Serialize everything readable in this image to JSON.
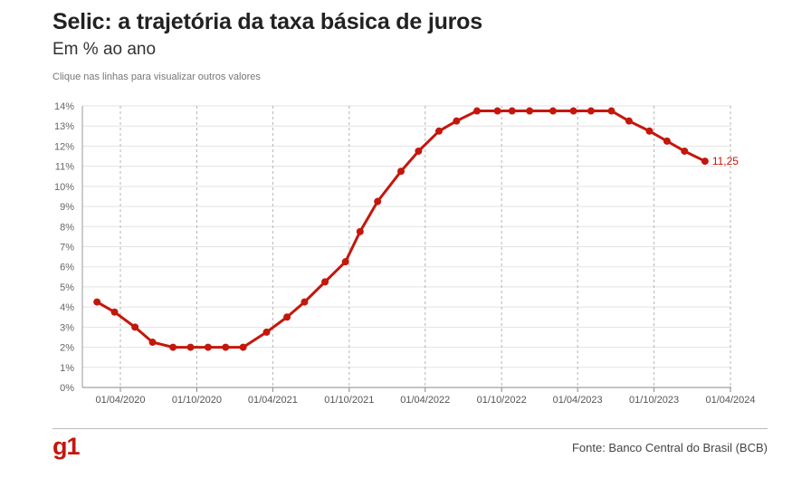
{
  "header": {
    "title": "Selic: a trajetória da taxa básica de juros",
    "subtitle": "Em % ao ano",
    "hint": "Clique nas linhas para visualizar outros valores"
  },
  "footer": {
    "logo": "g1",
    "source": "Fonte: Banco Central do Brasil (BCB)"
  },
  "colors": {
    "line": "#c4170c",
    "grid": "#e3e3e3",
    "vgrid": "#b5b5b5"
  },
  "chart_data": {
    "type": "line",
    "title": "Selic: a trajetória da taxa básica de juros",
    "subtitle": "Em % ao ano",
    "ylim": [
      0,
      14
    ],
    "y_ticks": [
      {
        "value": 0,
        "label": "0%"
      },
      {
        "value": 1,
        "label": "1%"
      },
      {
        "value": 2,
        "label": "2%"
      },
      {
        "value": 3,
        "label": "3%"
      },
      {
        "value": 4,
        "label": "4%"
      },
      {
        "value": 5,
        "label": "5%"
      },
      {
        "value": 6,
        "label": "6%"
      },
      {
        "value": 7,
        "label": "7%"
      },
      {
        "value": 8,
        "label": "8%"
      },
      {
        "value": 9,
        "label": "9%"
      },
      {
        "value": 10,
        "label": "10%"
      },
      {
        "value": 11,
        "label": "11%"
      },
      {
        "value": 12,
        "label": "12%"
      },
      {
        "value": 13,
        "label": "13%"
      },
      {
        "value": 14,
        "label": "14%"
      }
    ],
    "x_ticks": [
      "01/04/2020",
      "01/10/2020",
      "01/04/2021",
      "01/10/2021",
      "01/04/2022",
      "01/10/2022",
      "01/04/2023",
      "01/10/2023",
      "01/04/2024"
    ],
    "grid": true,
    "series": [
      {
        "x": [
          "2020-02-05",
          "2020-03-18",
          "2020-05-06",
          "2020-06-17",
          "2020-08-05",
          "2020-09-16",
          "2020-10-28",
          "2020-12-09",
          "2021-01-20",
          "2021-03-17",
          "2021-05-05",
          "2021-06-16",
          "2021-08-04",
          "2021-09-22",
          "2021-10-27",
          "2021-12-08",
          "2022-02-02",
          "2022-03-16",
          "2022-05-04",
          "2022-06-15",
          "2022-08-03",
          "2022-09-21",
          "2022-10-26",
          "2022-12-07",
          "2023-02-01",
          "2023-03-22",
          "2023-05-03",
          "2023-06-21",
          "2023-08-02",
          "2023-09-20",
          "2023-11-01",
          "2023-12-13",
          "2024-01-31"
        ],
        "values": [
          4.25,
          3.75,
          3.0,
          2.25,
          2.0,
          2.0,
          2.0,
          2.0,
          2.0,
          2.75,
          3.5,
          4.25,
          5.25,
          6.25,
          7.75,
          9.25,
          10.75,
          11.75,
          12.75,
          13.25,
          13.75,
          13.75,
          13.75,
          13.75,
          13.75,
          13.75,
          13.75,
          13.75,
          13.25,
          12.75,
          12.25,
          11.75,
          11.25
        ]
      }
    ],
    "annotations": [
      {
        "point_index": 32,
        "text": "11,25"
      }
    ]
  }
}
